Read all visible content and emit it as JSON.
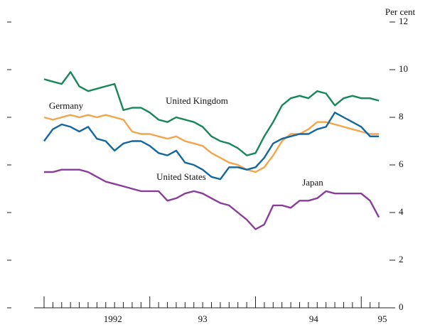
{
  "chart_data": {
    "type": "line",
    "ylabel": "Per cent",
    "x": [
      1992,
      1992.083,
      1992.167,
      1992.25,
      1992.333,
      1992.417,
      1992.5,
      1992.583,
      1992.667,
      1992.75,
      1992.833,
      1992.917,
      1993,
      1993.083,
      1993.167,
      1993.25,
      1993.333,
      1993.417,
      1993.5,
      1993.583,
      1993.667,
      1993.75,
      1993.833,
      1993.917,
      1994,
      1994.083,
      1994.167,
      1994.25,
      1994.333,
      1994.417,
      1994.5,
      1994.583,
      1994.667,
      1994.75,
      1994.833,
      1994.917,
      1995,
      1995.083,
      1995.167
    ],
    "series": [
      {
        "name": "United Kingdom",
        "color": "#17875a",
        "values": [
          9.6,
          9.5,
          9.4,
          9.9,
          9.3,
          9.1,
          9.2,
          9.3,
          9.4,
          8.3,
          8.4,
          8.4,
          8.2,
          7.9,
          7.8,
          8.0,
          7.9,
          7.8,
          7.6,
          7.2,
          7.0,
          6.9,
          6.7,
          6.4,
          6.5,
          7.2,
          7.8,
          8.5,
          8.8,
          8.9,
          8.8,
          9.1,
          9.0,
          8.5,
          8.8,
          8.9,
          8.8,
          8.8,
          8.7
        ]
      },
      {
        "name": "Germany",
        "color": "#f2a54a",
        "values": [
          8.0,
          7.9,
          8.0,
          8.1,
          8.0,
          8.1,
          8.0,
          8.1,
          8.0,
          7.9,
          7.4,
          7.3,
          7.3,
          7.2,
          7.1,
          7.2,
          7.0,
          6.9,
          6.8,
          6.5,
          6.3,
          6.1,
          6.0,
          5.8,
          5.7,
          5.9,
          6.4,
          7.0,
          7.3,
          7.3,
          7.5,
          7.8,
          7.8,
          7.7,
          7.6,
          7.5,
          7.4,
          7.3,
          7.3
        ]
      },
      {
        "name": "United States",
        "color": "#14679e",
        "values": [
          7.0,
          7.5,
          7.7,
          7.6,
          7.4,
          7.6,
          7.1,
          7.0,
          6.6,
          6.9,
          7.0,
          7.0,
          6.8,
          6.5,
          6.4,
          6.6,
          6.1,
          6.0,
          5.8,
          5.5,
          5.4,
          5.9,
          5.9,
          5.8,
          5.9,
          6.3,
          6.9,
          7.1,
          7.2,
          7.3,
          7.3,
          7.5,
          7.6,
          8.2,
          8.0,
          7.8,
          7.6,
          7.2,
          7.2
        ]
      },
      {
        "name": "Japan",
        "color": "#8b3c9b",
        "values": [
          5.7,
          5.7,
          5.8,
          5.8,
          5.8,
          5.7,
          5.5,
          5.3,
          5.2,
          5.1,
          5.0,
          4.9,
          4.9,
          4.9,
          4.5,
          4.6,
          4.8,
          4.9,
          4.8,
          4.6,
          4.4,
          4.3,
          4.0,
          3.7,
          3.3,
          3.5,
          4.3,
          4.3,
          4.2,
          4.5,
          4.5,
          4.6,
          4.9,
          4.8,
          4.8,
          4.8,
          4.8,
          4.5,
          3.8
        ]
      }
    ],
    "xlim": [
      1992,
      1995.2
    ],
    "xticks": [
      {
        "value": 1992.65,
        "label": "1992"
      },
      {
        "value": 1993.5,
        "label": "93"
      },
      {
        "value": 1994.55,
        "label": "94"
      },
      {
        "value": 1995.2,
        "label": "95"
      }
    ],
    "major_ticks": [
      1992,
      1993,
      1994,
      1995
    ],
    "ylim": [
      0,
      12
    ],
    "yticks": [
      0,
      2,
      4,
      6,
      8,
      10,
      12
    ]
  }
}
